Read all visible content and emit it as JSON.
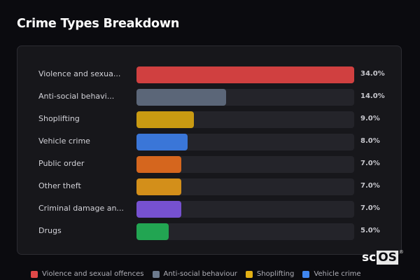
{
  "header": {
    "title": "Crime Types Breakdown"
  },
  "chart_data": {
    "type": "bar",
    "orientation": "horizontal",
    "title": "Crime Types Breakdown",
    "xlabel": "",
    "ylabel": "",
    "xlim": [
      0,
      34
    ],
    "grid": false,
    "legend_position": "bottom",
    "categories": [
      "Violence and sexual offences",
      "Anti-social behaviour",
      "Shoplifting",
      "Vehicle crime",
      "Public order",
      "Other theft",
      "Criminal damage and arson",
      "Drugs"
    ],
    "values": [
      34.0,
      14.0,
      9.0,
      8.0,
      7.0,
      7.0,
      7.0,
      5.0
    ],
    "units": "%"
  },
  "rows": [
    {
      "label": "Violence and sexua...",
      "value": 34.0,
      "pct": "34.0%",
      "color": "#d04040"
    },
    {
      "label": "Anti-social behavi...",
      "value": 14.0,
      "pct": "14.0%",
      "color": "#5b6678"
    },
    {
      "label": "Shoplifting",
      "value": 9.0,
      "pct": "9.0%",
      "color": "#c99a12"
    },
    {
      "label": "Vehicle crime",
      "value": 8.0,
      "pct": "8.0%",
      "color": "#3a76d8"
    },
    {
      "label": "Public order",
      "value": 7.0,
      "pct": "7.0%",
      "color": "#d5661e"
    },
    {
      "label": "Other theft",
      "value": 7.0,
      "pct": "7.0%",
      "color": "#d38f1a"
    },
    {
      "label": "Criminal damage an...",
      "value": 7.0,
      "pct": "7.0%",
      "color": "#7651d0"
    },
    {
      "label": "Drugs",
      "value": 5.0,
      "pct": "5.0%",
      "color": "#22a552"
    }
  ],
  "legend": [
    {
      "label": "Violence and sexual offences",
      "color": "#e04848"
    },
    {
      "label": "Anti-social behaviour",
      "color": "#6c7a8e"
    },
    {
      "label": "Shoplifting",
      "color": "#e3b014"
    },
    {
      "label": "Vehicle crime",
      "color": "#3f86f0"
    }
  ],
  "logo": {
    "text_a": "sc",
    "text_b": "OS",
    "mark": "®"
  }
}
